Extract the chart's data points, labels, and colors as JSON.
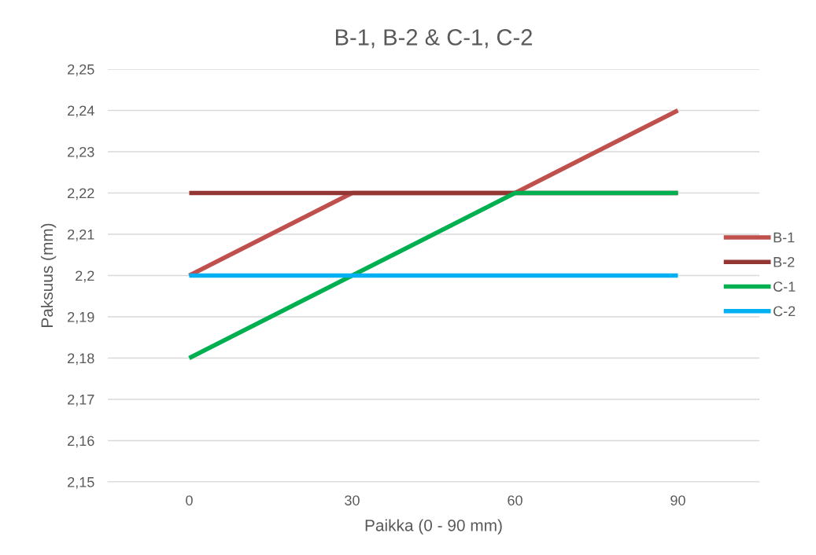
{
  "chart_data": {
    "type": "line",
    "title": "B-1, B-2 & C-1, C-2",
    "xlabel": "Paikka (0 - 90 mm)",
    "ylabel": "Paksuus (mm)",
    "categories": [
      "0",
      "30",
      "60",
      "90"
    ],
    "series": [
      {
        "name": "B-1",
        "color": "#c0504d",
        "values": [
          2.2,
          2.22,
          2.22,
          2.24
        ]
      },
      {
        "name": "B-2",
        "color": "#943634",
        "values": [
          2.22,
          2.22,
          2.22,
          2.22
        ]
      },
      {
        "name": "C-1",
        "color": "#00b050",
        "values": [
          2.18,
          2.2,
          2.22,
          2.22
        ]
      },
      {
        "name": "C-2",
        "color": "#00b0f0",
        "values": [
          2.2,
          2.2,
          2.2,
          2.2
        ]
      }
    ],
    "ylim": [
      2.15,
      2.25
    ],
    "yticks": [
      {
        "value": 2.15,
        "label": "2,15"
      },
      {
        "value": 2.16,
        "label": "2,16"
      },
      {
        "value": 2.17,
        "label": "2,17"
      },
      {
        "value": 2.18,
        "label": "2,18"
      },
      {
        "value": 2.19,
        "label": "2,19"
      },
      {
        "value": 2.2,
        "label": "2,2"
      },
      {
        "value": 2.21,
        "label": "2,21"
      },
      {
        "value": 2.22,
        "label": "2,22"
      },
      {
        "value": 2.23,
        "label": "2,23"
      },
      {
        "value": 2.24,
        "label": "2,24"
      },
      {
        "value": 2.25,
        "label": "2,25"
      }
    ],
    "grid": "y",
    "legend": "right",
    "marker": "none",
    "line_style": "solid"
  }
}
